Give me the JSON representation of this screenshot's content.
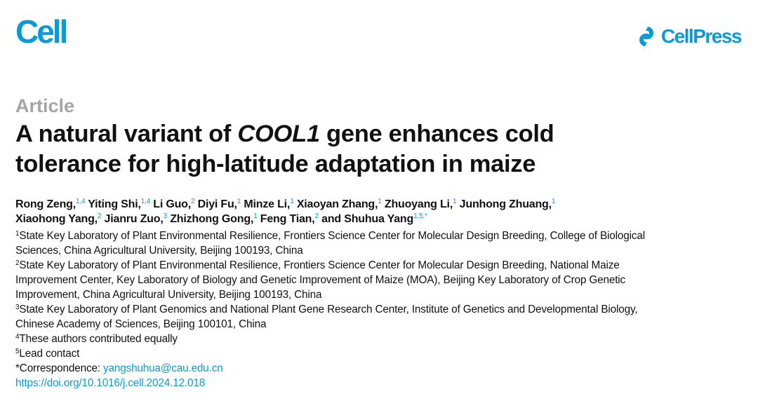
{
  "header": {
    "journal_logo": "Cell",
    "publisher_logo": "CellPress",
    "brand_color": "#0a9ad8"
  },
  "article_type": "Article",
  "title": {
    "line1_pre": "A natural variant of ",
    "line1_gene": "COOL1",
    "line1_post": " gene enhances cold",
    "line2": "tolerance for high-latitude adaptation in maize"
  },
  "authors": [
    {
      "name": "Rong Zeng,",
      "sup": "1,4"
    },
    {
      "name": "Yiting Shi,",
      "sup": "1,4"
    },
    {
      "name": "Li Guo,",
      "sup": "2"
    },
    {
      "name": "Diyi Fu,",
      "sup": "1"
    },
    {
      "name": "Minze Li,",
      "sup": "1"
    },
    {
      "name": "Xiaoyan Zhang,",
      "sup": "1"
    },
    {
      "name": "Zhuoyang Li,",
      "sup": "1"
    },
    {
      "name": "Junhong Zhuang,",
      "sup": "1"
    },
    {
      "name": "Xiaohong Yang,",
      "sup": "2"
    },
    {
      "name": "Jianru Zuo,",
      "sup": "3"
    },
    {
      "name": "Zhizhong Gong,",
      "sup": "1"
    },
    {
      "name": "Feng Tian,",
      "sup": "2"
    },
    {
      "name": "and Shuhua Yang",
      "sup": "1,5,*"
    }
  ],
  "affiliations": [
    {
      "sup": "1",
      "lines": [
        "State Key Laboratory of Plant Environmental Resilience, Frontiers Science Center for Molecular Design Breeding, College of Biological",
        "Sciences, China Agricultural University, Beijing 100193, China"
      ]
    },
    {
      "sup": "2",
      "lines": [
        "State Key Laboratory of Plant Environmental Resilience, Frontiers Science Center for Molecular Design Breeding, National Maize",
        "Improvement Center, Key Laboratory of Biology and Genetic Improvement of Maize (MOA), Beijing Key Laboratory of Crop Genetic",
        "Improvement, China Agricultural University, Beijing 100193, China"
      ]
    },
    {
      "sup": "3",
      "lines": [
        "State Key Laboratory of Plant Genomics and National Plant Gene Research Center, Institute of Genetics and Developmental Biology,",
        "Chinese Academy of Sciences, Beijing 100101, China"
      ]
    },
    {
      "sup": "4",
      "lines": [
        "These authors contributed equally"
      ]
    },
    {
      "sup": "5",
      "lines": [
        "Lead contact"
      ]
    }
  ],
  "correspondence": {
    "label": "*Correspondence: ",
    "email": "yangshuhua@cau.edu.cn"
  },
  "doi": "https://doi.org/10.1016/j.cell.2024.12.018"
}
